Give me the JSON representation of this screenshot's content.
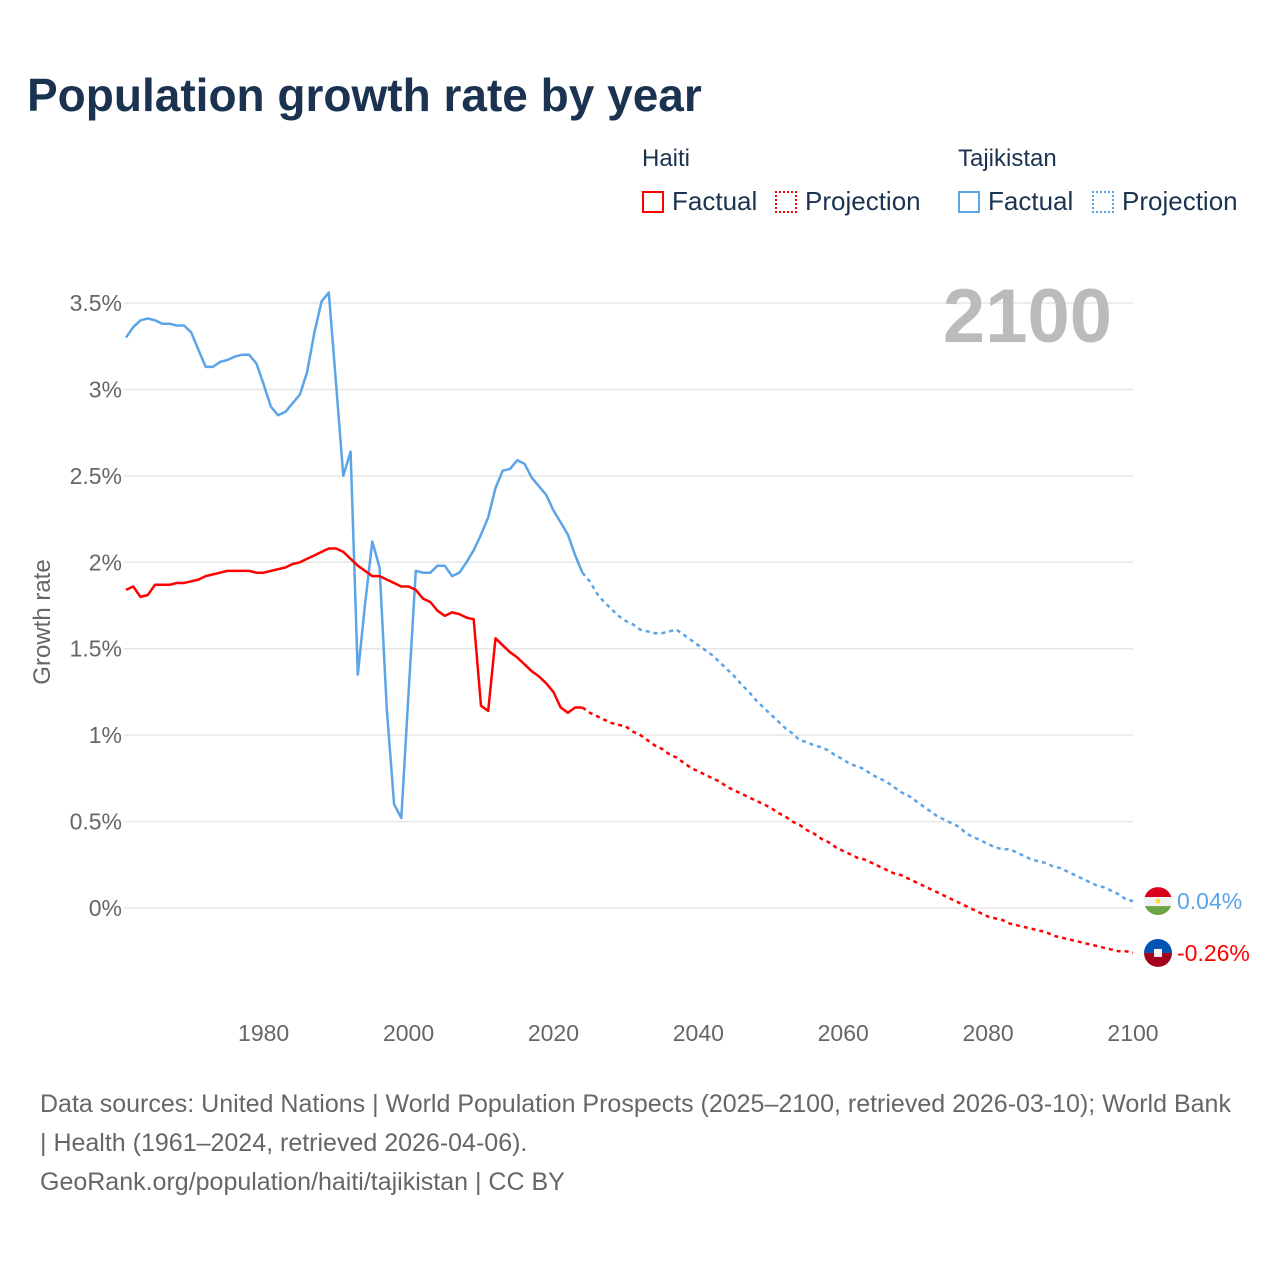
{
  "title": "Population growth rate by year",
  "legend": {
    "groups": [
      {
        "country": "Haiti",
        "factual": "Factual",
        "projection": "Projection",
        "color": "#ff0000"
      },
      {
        "country": "Tajikistan",
        "factual": "Factual",
        "projection": "Projection",
        "color": "#5ba4e8"
      }
    ]
  },
  "footer": {
    "sources": "Data sources: United Nations | World Population Prospects (2025–2100, retrieved 2026-03-10); World Bank | Health (1961–2024, retrieved 2026-04-06).",
    "link": "GeoRank.org/population/haiti/tajikistan | CC BY"
  },
  "chart_data": {
    "type": "line",
    "title": "Population growth rate by year",
    "current_year_label": "2100",
    "xlabel": "",
    "ylabel": "Growth rate",
    "xlim": [
      1961,
      2100
    ],
    "ylim": [
      -0.59,
      3.7
    ],
    "grid": true,
    "legend_position": "top-right",
    "x_ticks": [
      "1980",
      "2000",
      "2020",
      "2040",
      "2060",
      "2080",
      "2100"
    ],
    "x_tick_values": [
      1980,
      2000,
      2020,
      2040,
      2060,
      2080,
      2100
    ],
    "y_ticks": [
      "0%",
      "0.5%",
      "1%",
      "1.5%",
      "2%",
      "2.5%",
      "3%",
      "3.5%"
    ],
    "y_tick_values": [
      0,
      0.5,
      1,
      1.5,
      2,
      2.5,
      3,
      3.5
    ],
    "series": [
      {
        "name": "Tajikistan",
        "color": "#5ba4e8",
        "end_label": "0.04%",
        "factual_start": 1961,
        "factual": [
          3.3,
          3.36,
          3.4,
          3.41,
          3.4,
          3.38,
          3.38,
          3.37,
          3.37,
          3.33,
          3.23,
          3.13,
          3.13,
          3.16,
          3.17,
          3.19,
          3.2,
          3.2,
          3.15,
          3.03,
          2.9,
          2.85,
          2.87,
          2.92,
          2.97,
          3.1,
          3.33,
          3.51,
          3.56,
          3.03,
          2.5,
          2.64,
          1.35,
          1.76,
          2.12,
          1.97,
          1.15,
          0.6,
          0.52,
          1.24,
          1.95,
          1.94,
          1.94,
          1.98,
          1.98,
          1.92,
          1.94,
          2.0,
          2.07,
          2.16,
          2.26,
          2.43,
          2.53,
          2.54,
          2.59,
          2.57,
          2.49,
          2.44,
          2.39,
          2.3,
          2.23,
          2.16,
          2.04,
          1.94
        ],
        "projection_start": 2024,
        "projection": [
          1.94,
          1.89,
          1.82,
          1.77,
          1.73,
          1.69,
          1.66,
          1.64,
          1.61,
          1.6,
          1.59,
          1.59,
          1.6,
          1.61,
          1.58,
          1.55,
          1.52,
          1.49,
          1.46,
          1.42,
          1.38,
          1.34,
          1.29,
          1.25,
          1.2,
          1.16,
          1.12,
          1.08,
          1.04,
          1.01,
          0.97,
          0.96,
          0.94,
          0.93,
          0.91,
          0.88,
          0.86,
          0.83,
          0.82,
          0.8,
          0.77,
          0.75,
          0.73,
          0.7,
          0.67,
          0.65,
          0.62,
          0.59,
          0.56,
          0.53,
          0.51,
          0.49,
          0.47,
          0.43,
          0.41,
          0.39,
          0.37,
          0.35,
          0.34,
          0.34,
          0.32,
          0.3,
          0.28,
          0.27,
          0.26,
          0.24,
          0.23,
          0.21,
          0.19,
          0.17,
          0.15,
          0.13,
          0.12,
          0.1,
          0.08,
          0.05,
          0.04
        ]
      },
      {
        "name": "Haiti",
        "color": "#ff0000",
        "end_label": "-0.26%",
        "factual_start": 1961,
        "factual": [
          1.84,
          1.86,
          1.8,
          1.81,
          1.87,
          1.87,
          1.87,
          1.88,
          1.88,
          1.89,
          1.9,
          1.92,
          1.93,
          1.94,
          1.95,
          1.95,
          1.95,
          1.95,
          1.94,
          1.94,
          1.95,
          1.96,
          1.97,
          1.99,
          2.0,
          2.02,
          2.04,
          2.06,
          2.08,
          2.08,
          2.06,
          2.02,
          1.98,
          1.95,
          1.92,
          1.92,
          1.9,
          1.88,
          1.86,
          1.86,
          1.84,
          1.79,
          1.77,
          1.72,
          1.69,
          1.71,
          1.7,
          1.68,
          1.67,
          1.17,
          1.14,
          1.56,
          1.52,
          1.48,
          1.45,
          1.41,
          1.37,
          1.34,
          1.3,
          1.25,
          1.16,
          1.13,
          1.16,
          1.16
        ],
        "projection_start": 2024,
        "projection": [
          1.16,
          1.13,
          1.11,
          1.09,
          1.07,
          1.06,
          1.05,
          1.02,
          1.0,
          0.97,
          0.94,
          0.92,
          0.89,
          0.87,
          0.84,
          0.81,
          0.79,
          0.77,
          0.75,
          0.73,
          0.7,
          0.68,
          0.66,
          0.64,
          0.62,
          0.6,
          0.58,
          0.55,
          0.53,
          0.5,
          0.48,
          0.45,
          0.43,
          0.4,
          0.38,
          0.35,
          0.33,
          0.31,
          0.29,
          0.28,
          0.26,
          0.24,
          0.22,
          0.2,
          0.19,
          0.17,
          0.15,
          0.13,
          0.11,
          0.09,
          0.07,
          0.05,
          0.03,
          0.01,
          -0.01,
          -0.03,
          -0.05,
          -0.06,
          -0.07,
          -0.09,
          -0.1,
          -0.11,
          -0.12,
          -0.13,
          -0.14,
          -0.16,
          -0.17,
          -0.18,
          -0.19,
          -0.2,
          -0.21,
          -0.22,
          -0.23,
          -0.24,
          -0.25,
          -0.25,
          -0.26
        ]
      }
    ]
  }
}
